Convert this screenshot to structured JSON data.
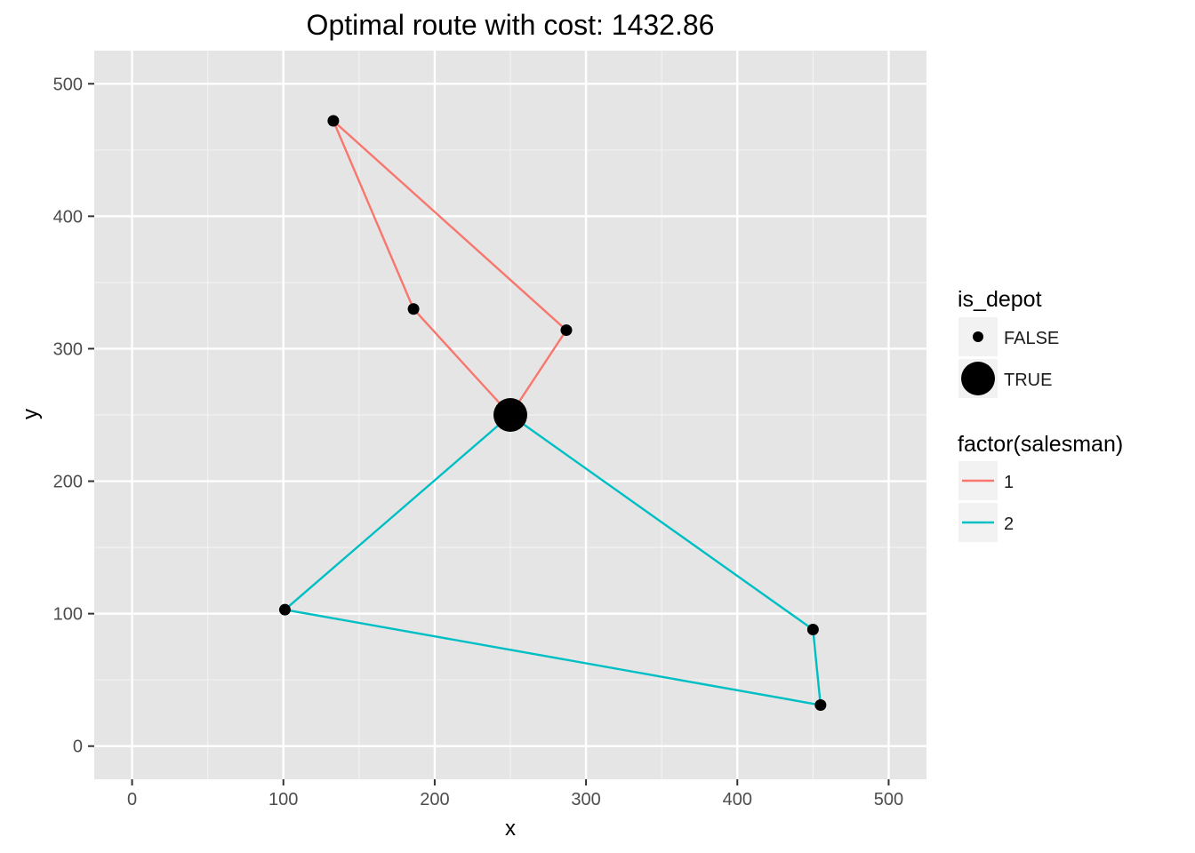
{
  "chart_data": {
    "type": "scatter",
    "title": "Optimal route with cost: 1432.86",
    "xlabel": "x",
    "ylabel": "y",
    "xlim": [
      -25,
      525
    ],
    "ylim": [
      -25,
      525
    ],
    "xticks": [
      0,
      100,
      200,
      300,
      400,
      500
    ],
    "yticks": [
      0,
      100,
      200,
      300,
      400,
      500
    ],
    "grid": true,
    "panel_background": "#e5e5e5",
    "points": [
      {
        "x": 250,
        "y": 250,
        "is_depot": "TRUE"
      },
      {
        "x": 133,
        "y": 472,
        "is_depot": "FALSE"
      },
      {
        "x": 186,
        "y": 330,
        "is_depot": "FALSE"
      },
      {
        "x": 287,
        "y": 314,
        "is_depot": "FALSE"
      },
      {
        "x": 101,
        "y": 103,
        "is_depot": "FALSE"
      },
      {
        "x": 450,
        "y": 88,
        "is_depot": "FALSE"
      },
      {
        "x": 455,
        "y": 31,
        "is_depot": "FALSE"
      }
    ],
    "series": [
      {
        "name": "1",
        "color": "#f8766d",
        "route": [
          [
            250,
            250
          ],
          [
            186,
            330
          ],
          [
            133,
            472
          ],
          [
            287,
            314
          ],
          [
            250,
            250
          ]
        ]
      },
      {
        "name": "2",
        "color": "#00bfc4",
        "route": [
          [
            250,
            250
          ],
          [
            101,
            103
          ],
          [
            455,
            31
          ],
          [
            450,
            88
          ],
          [
            250,
            250
          ]
        ]
      }
    ],
    "legends": {
      "is_depot": {
        "title": "is_depot",
        "entries": [
          {
            "label": "FALSE",
            "symbol": "small-point"
          },
          {
            "label": "TRUE",
            "symbol": "large-point"
          }
        ]
      },
      "salesman": {
        "title": "factor(salesman)",
        "entries": [
          {
            "label": "1",
            "color": "#f8766d"
          },
          {
            "label": "2",
            "color": "#00bfc4"
          }
        ]
      },
      "placement": "right"
    }
  }
}
